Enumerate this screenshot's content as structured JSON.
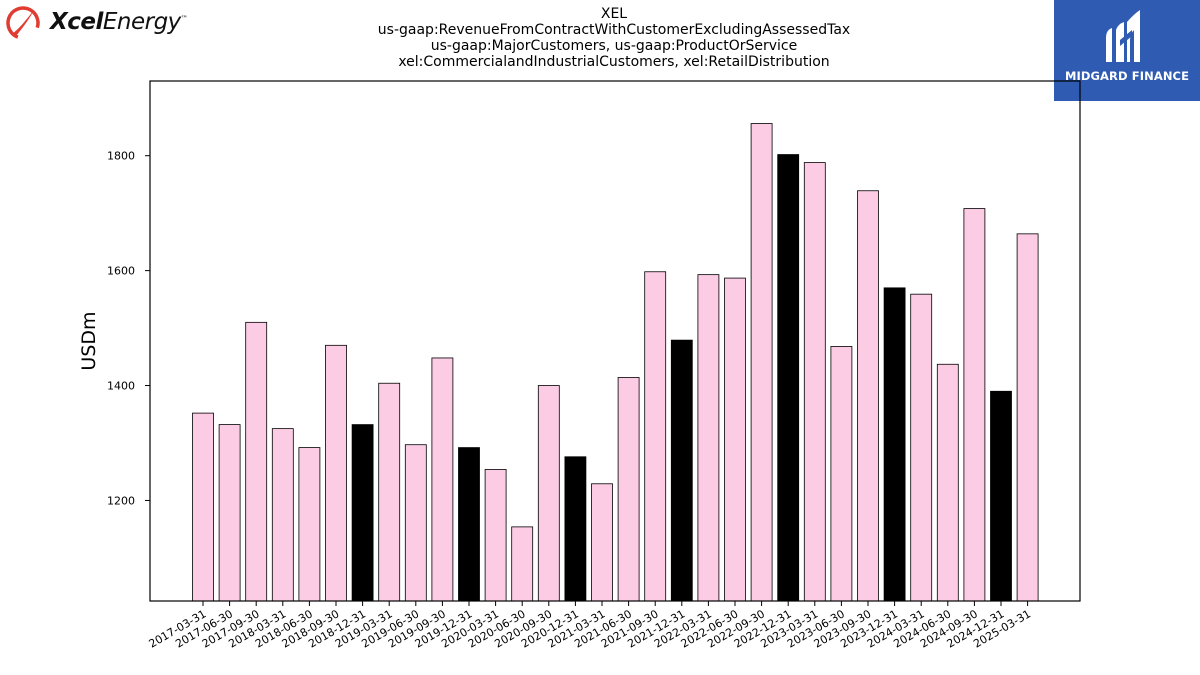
{
  "brand": {
    "left_logo_bold": "Xcel",
    "left_logo_light": "Energy",
    "left_logo_mark": "™",
    "right_logo_text": "MIDGARD FINANCE",
    "left_logo_color": "#e03c31",
    "right_logo_bg": "#2f5bb2"
  },
  "chart_data": {
    "type": "bar",
    "title_lines": [
      "XEL",
      "us-gaap:RevenueFromContractWithCustomerExcludingAssessedTax",
      "us-gaap:MajorCustomers, us-gaap:ProductOrService",
      "xel:CommercialandIndustrialCustomers, xel:RetailDistribution"
    ],
    "ylabel": "USDm",
    "xlabel": "",
    "ylim": [
      1025,
      1930
    ],
    "yticks": [
      1200,
      1400,
      1600,
      1800
    ],
    "grid": false,
    "legend": "none",
    "colors": {
      "quarter": "#fccce5",
      "year_end": "#000000",
      "edge": "#000000"
    },
    "categories": [
      "2017-03-31",
      "2017-06-30",
      "2017-09-30",
      "2018-03-31",
      "2018-06-30",
      "2018-09-30",
      "2018-12-31",
      "2019-03-31",
      "2019-06-30",
      "2019-09-30",
      "2019-12-31",
      "2020-03-31",
      "2020-06-30",
      "2020-09-30",
      "2020-12-31",
      "2021-03-31",
      "2021-06-30",
      "2021-09-30",
      "2021-12-31",
      "2022-03-31",
      "2022-06-30",
      "2022-09-30",
      "2022-12-31",
      "2023-03-31",
      "2023-06-30",
      "2023-09-30",
      "2023-12-31",
      "2024-03-31",
      "2024-06-30",
      "2024-09-30",
      "2024-12-31",
      "2025-03-31"
    ],
    "values": [
      1352,
      1332,
      1510,
      1325,
      1292,
      1470,
      1332,
      1404,
      1297,
      1448,
      1292,
      1254,
      1154,
      1400,
      1276,
      1229,
      1414,
      1598,
      1479,
      1593,
      1587,
      1856,
      1802,
      1788,
      1468,
      1739,
      1570,
      1559,
      1437,
      1708,
      1390,
      1664
    ],
    "year_end_flags": [
      false,
      false,
      false,
      false,
      false,
      false,
      true,
      false,
      false,
      false,
      true,
      false,
      false,
      false,
      true,
      false,
      false,
      false,
      true,
      false,
      false,
      false,
      true,
      false,
      false,
      false,
      true,
      false,
      false,
      false,
      true,
      false
    ]
  }
}
